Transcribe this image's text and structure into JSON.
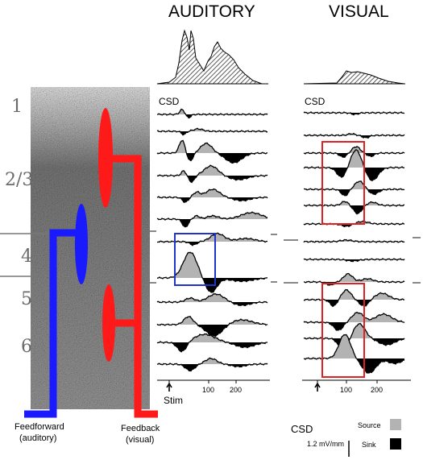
{
  "titles": {
    "auditory": "AUDITORY",
    "visual": "VISUAL"
  },
  "layers": [
    "1",
    "2/3",
    "4",
    "5",
    "6"
  ],
  "csd_label": "CSD",
  "axis": {
    "ticks": [
      "100",
      "200"
    ],
    "stim_label": "Stim"
  },
  "pathways": {
    "feedforward": {
      "line1": "Feedforward",
      "line2": "(auditory)",
      "color": "#1a1aff"
    },
    "feedback": {
      "line1": "Feedback",
      "line2": "(visual)",
      "color": "#ff1a1a"
    }
  },
  "legend": {
    "title": "CSD",
    "source": "Source",
    "sink": "Sink",
    "scale": "1.2 mV/mm",
    "source_color": "#b3b3b3",
    "sink_color": "#000000"
  },
  "highlight_colors": {
    "auditory_box": "#2233cc",
    "visual_box": "#dd2222"
  }
}
